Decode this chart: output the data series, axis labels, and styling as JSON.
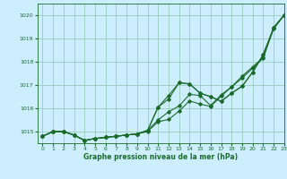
{
  "background_color": "#cceeff",
  "grid_color": "#99ccbb",
  "line_color": "#1a6b2a",
  "xlabel": "Graphe pression niveau de la mer (hPa)",
  "xlim": [
    -0.5,
    23
  ],
  "ylim": [
    1014.5,
    1020.5
  ],
  "yticks": [
    1015,
    1016,
    1017,
    1018,
    1019,
    1020
  ],
  "xticks": [
    0,
    1,
    2,
    3,
    4,
    5,
    6,
    7,
    8,
    9,
    10,
    11,
    12,
    13,
    14,
    15,
    16,
    17,
    18,
    19,
    20,
    21,
    22,
    23
  ],
  "series": [
    [
      1014.8,
      1015.0,
      1015.0,
      1014.85,
      1014.62,
      1014.7,
      1014.75,
      1014.8,
      1014.85,
      1014.9,
      1015.05,
      1016.05,
      1016.4,
      1017.1,
      1017.05,
      1016.65,
      1016.5,
      1016.3,
      1016.65,
      1016.95,
      1017.55,
      1018.3,
      1019.45,
      1020.0
    ],
    [
      1014.8,
      1015.0,
      1015.0,
      1014.85,
      1014.62,
      1014.7,
      1014.75,
      1014.8,
      1014.85,
      1014.9,
      1015.05,
      1016.05,
      1016.55,
      1017.1,
      1017.05,
      1016.65,
      1016.5,
      1016.3,
      1016.65,
      1016.95,
      1017.55,
      1018.3,
      1019.45,
      1020.0
    ],
    [
      1014.8,
      1015.0,
      1015.0,
      1014.85,
      1014.62,
      1014.7,
      1014.75,
      1014.8,
      1014.85,
      1014.9,
      1015.05,
      1015.5,
      1015.85,
      1016.1,
      1016.6,
      1016.55,
      1016.12,
      1016.58,
      1016.92,
      1017.3,
      1017.72,
      1018.15,
      1019.42,
      1020.0
    ],
    [
      1014.8,
      1015.0,
      1015.0,
      1014.85,
      1014.62,
      1014.7,
      1014.75,
      1014.8,
      1014.85,
      1014.9,
      1015.0,
      1015.42,
      1015.52,
      1015.88,
      1016.32,
      1016.18,
      1016.08,
      1016.52,
      1016.92,
      1017.38,
      1017.78,
      1018.18,
      1019.48,
      1020.0
    ]
  ]
}
